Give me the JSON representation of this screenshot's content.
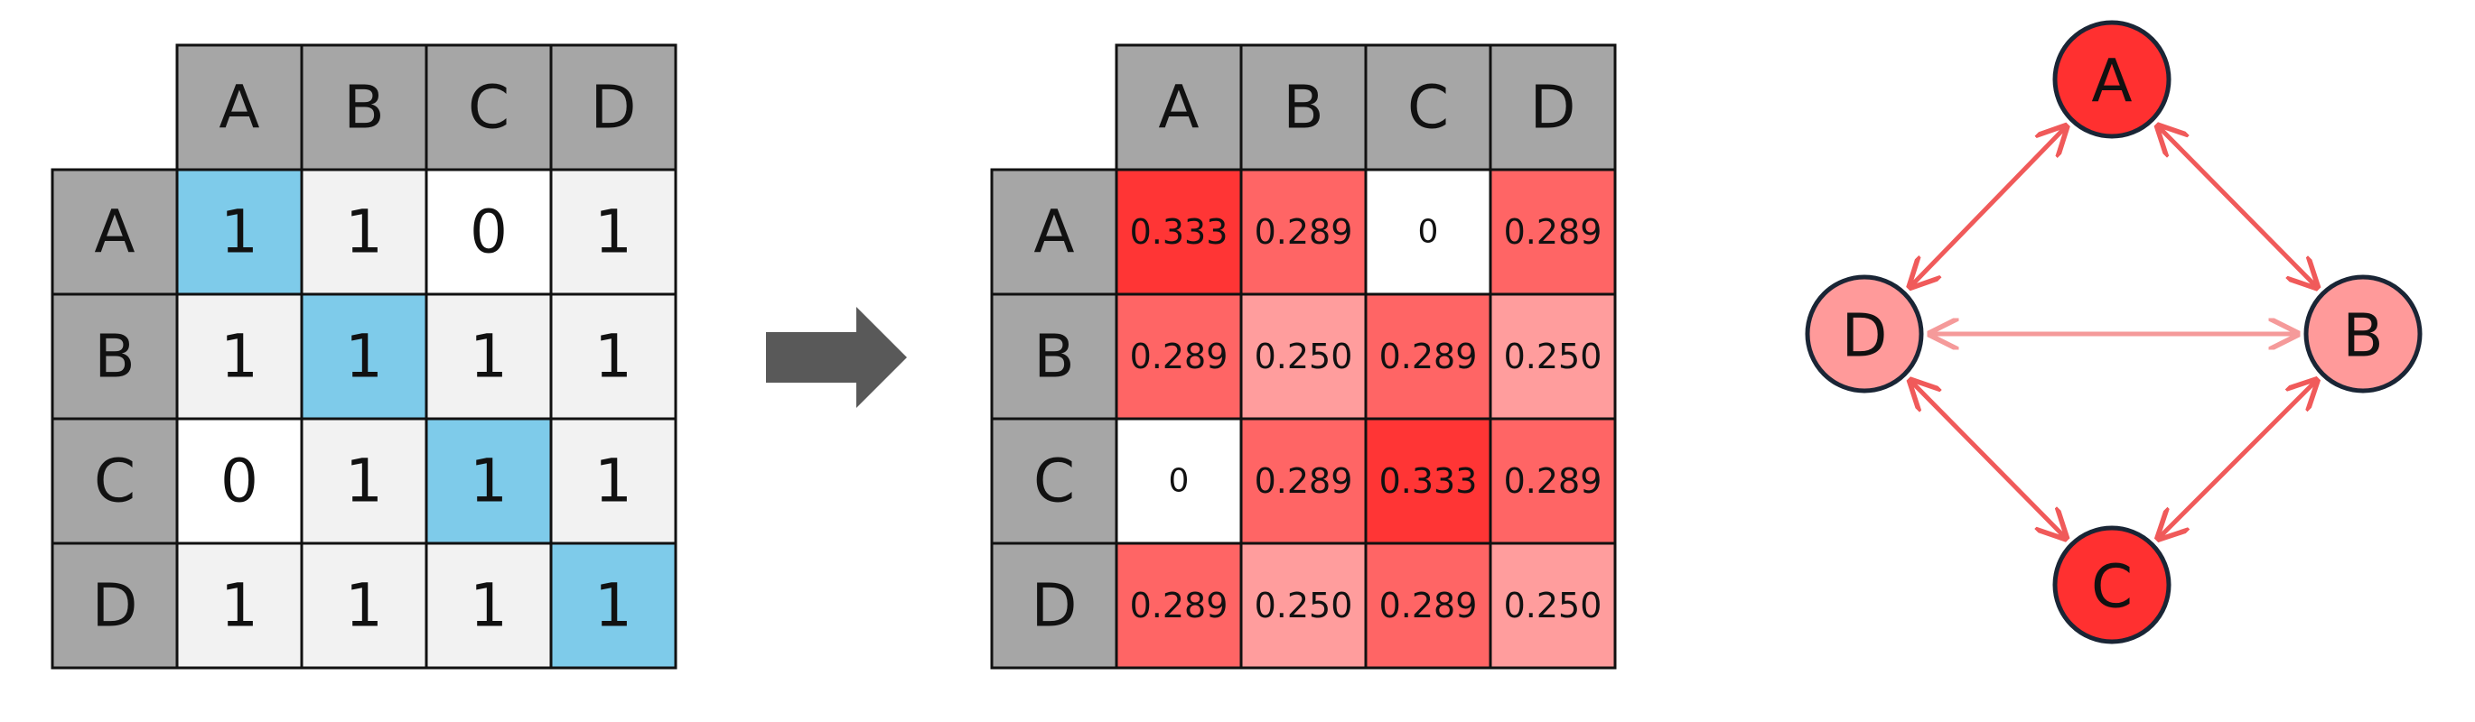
{
  "adjacency": {
    "col_headers": [
      "A",
      "B",
      "C",
      "D"
    ],
    "row_headers": [
      "A",
      "B",
      "C",
      "D"
    ],
    "values": [
      [
        "1",
        "1",
        "0",
        "1"
      ],
      [
        "1",
        "1",
        "1",
        "1"
      ],
      [
        "0",
        "1",
        "1",
        "1"
      ],
      [
        "1",
        "1",
        "1",
        "1"
      ]
    ]
  },
  "normalized": {
    "col_headers": [
      "A",
      "B",
      "C",
      "D"
    ],
    "row_headers": [
      "A",
      "B",
      "C",
      "D"
    ],
    "values": [
      [
        "0.333",
        "0.289",
        "0",
        "0.289"
      ],
      [
        "0.289",
        "0.250",
        "0.289",
        "0.250"
      ],
      [
        "0",
        "0.289",
        "0.333",
        "0.289"
      ],
      [
        "0.289",
        "0.250",
        "0.289",
        "0.250"
      ]
    ]
  },
  "graph": {
    "nodes": [
      {
        "id": "A",
        "label": "A",
        "fill": "#ff3030"
      },
      {
        "id": "B",
        "label": "B",
        "fill": "#ff9a9a"
      },
      {
        "id": "C",
        "label": "C",
        "fill": "#ff3030"
      },
      {
        "id": "D",
        "label": "D",
        "fill": "#ff9a9a"
      }
    ],
    "edges": [
      {
        "from": "A",
        "to": "D",
        "color": "#f05a5a"
      },
      {
        "from": "A",
        "to": "B",
        "color": "#f05a5a"
      },
      {
        "from": "D",
        "to": "B",
        "color": "#f59a9a"
      },
      {
        "from": "D",
        "to": "C",
        "color": "#f05a5a"
      },
      {
        "from": "B",
        "to": "C",
        "color": "#f05a5a"
      }
    ]
  },
  "colors": {
    "header_fill": "#a6a6a6",
    "one_fill": "#f2f2f2",
    "zero_fill": "#ffffff",
    "diagonal_fill": "#7ecbea",
    "heat_0_333": "#ff3535",
    "heat_0_289": "#ff6565",
    "heat_0_250": "#ff9d9d",
    "heat_0": "#ffffff",
    "arrow": "#595959",
    "node_stroke": "#1a2535"
  }
}
